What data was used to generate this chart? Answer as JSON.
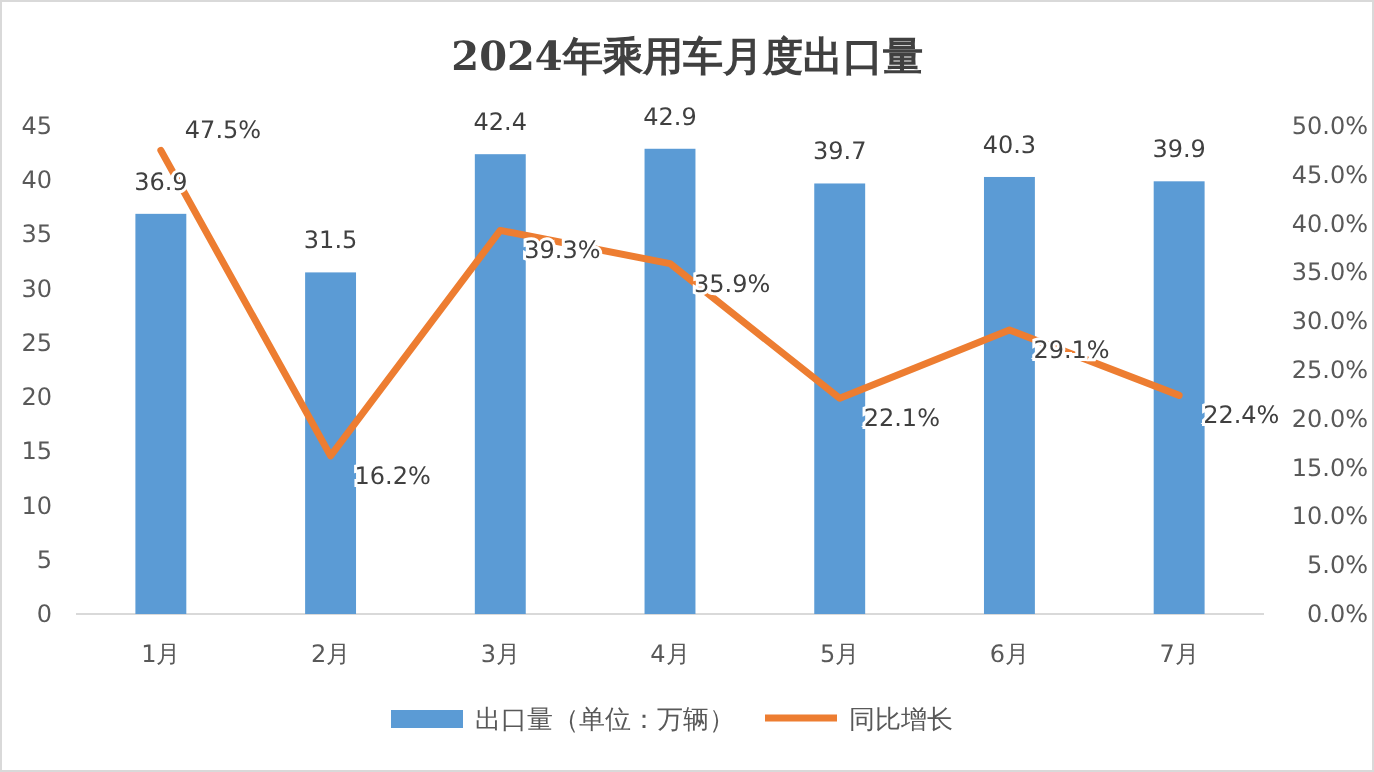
{
  "chart_data": {
    "type": "bar",
    "title": "2024年乘用车月度出口量",
    "categories": [
      "1月",
      "2月",
      "3月",
      "4月",
      "5月",
      "6月",
      "7月"
    ],
    "series": [
      {
        "name": "出口量（单位：万辆）",
        "color": "#5b9bd5",
        "values": [
          36.9,
          31.5,
          42.4,
          42.9,
          39.7,
          40.3,
          39.9
        ],
        "value_labels": [
          "36.9",
          "31.5",
          "42.4",
          "42.9",
          "39.7",
          "40.3",
          "39.9"
        ]
      },
      {
        "name": "同比增长",
        "type": "line",
        "axis": "y2",
        "color": "#ed7d31",
        "values": [
          47.5,
          16.2,
          39.3,
          35.9,
          22.1,
          29.1,
          22.4
        ],
        "value_labels": [
          "47.5%",
          "16.2%",
          "39.3%",
          "35.9%",
          "22.1%",
          "29.1%",
          "22.4%"
        ]
      }
    ],
    "ylim": [
      0,
      45
    ],
    "yticks": [
      0,
      5,
      10,
      15,
      20,
      25,
      30,
      35,
      40,
      45
    ],
    "y2lim": [
      0,
      50
    ],
    "y2ticks": [
      {
        "value": 0,
        "label": "0.0%"
      },
      {
        "value": 5,
        "label": "5.0%"
      },
      {
        "value": 10,
        "label": "10.0%"
      },
      {
        "value": 15,
        "label": "15.0%"
      },
      {
        "value": 20,
        "label": "20.0%"
      },
      {
        "value": 25,
        "label": "25.0%"
      },
      {
        "value": 30,
        "label": "30.0%"
      },
      {
        "value": 35,
        "label": "35.0%"
      },
      {
        "value": 40,
        "label": "40.0%"
      },
      {
        "value": 45,
        "label": "45.0%"
      },
      {
        "value": 50,
        "label": "50.0%"
      }
    ],
    "legend": "bottom",
    "marker": "none",
    "line_style": "solid",
    "grid": false
  }
}
